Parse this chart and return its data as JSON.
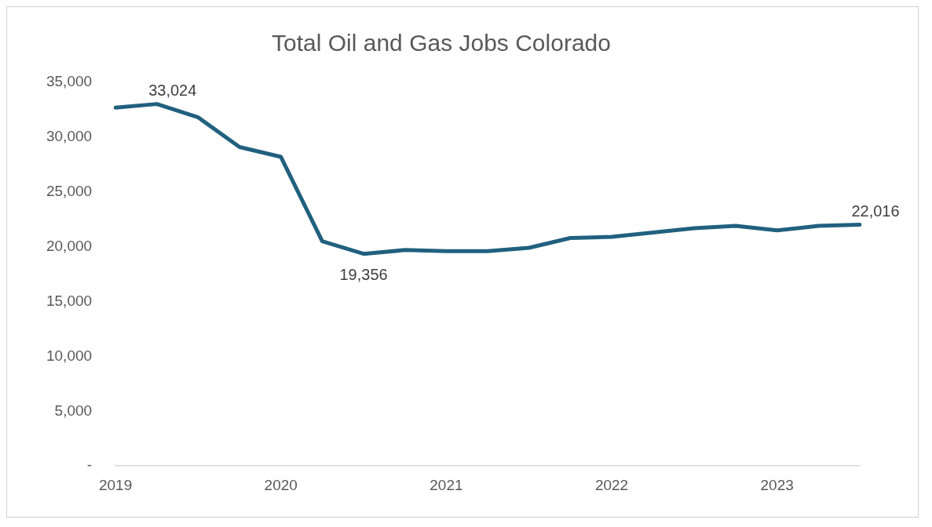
{
  "chart_data": {
    "type": "line",
    "title": "Total Oil and Gas Jobs Colorado",
    "categories": [
      "2019",
      null,
      null,
      null,
      "2020",
      null,
      null,
      null,
      "2021",
      null,
      null,
      null,
      "2022",
      null,
      null,
      null,
      "2023",
      null,
      null
    ],
    "series": [
      {
        "color": "#21607f",
        "values": [
          32700,
          33024,
          31800,
          29100,
          28200,
          20500,
          19356,
          19700,
          19600,
          19600,
          19900,
          20800,
          20900,
          21300,
          21700,
          21900,
          21500,
          21900,
          22016
        ],
        "value_labels": [
          null,
          "33,024",
          null,
          null,
          null,
          null,
          "19,356",
          null,
          null,
          null,
          null,
          null,
          null,
          null,
          null,
          null,
          null,
          null,
          "22,016"
        ]
      }
    ],
    "ylim": [
      0,
      35000
    ],
    "yticks": [
      {
        "value": 0,
        "label": "-"
      },
      {
        "value": 5000,
        "label": "5,000"
      },
      {
        "value": 10000,
        "label": "10,000"
      },
      {
        "value": 15000,
        "label": "15,000"
      },
      {
        "value": 20000,
        "label": "20,000"
      },
      {
        "value": 25000,
        "label": "25,000"
      },
      {
        "value": 30000,
        "label": "30,000"
      },
      {
        "value": 35000,
        "label": "35,000"
      }
    ],
    "grid": false,
    "legend": false,
    "marker": "none",
    "line_style": "solid"
  }
}
